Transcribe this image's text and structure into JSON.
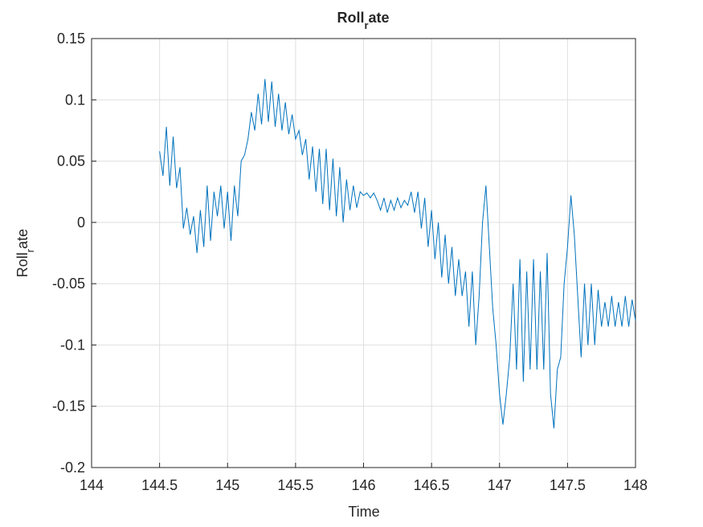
{
  "chart_data": {
    "type": "line",
    "title": [
      "Roll",
      "r",
      "ate"
    ],
    "xlabel": "Time",
    "ylabel": [
      "Roll",
      "r",
      "ate"
    ],
    "xlim": [
      144,
      148
    ],
    "xticks": [
      144,
      144.5,
      145,
      145.5,
      146,
      146.5,
      147,
      147.5,
      148
    ],
    "ylim": [
      -0.2,
      0.15
    ],
    "yticks": [
      -0.2,
      -0.15,
      -0.1,
      -0.05,
      0,
      0.05,
      0.1,
      0.15
    ],
    "grid": true,
    "x": [
      144.5,
      144.525,
      144.55,
      144.575,
      144.6,
      144.625,
      144.65,
      144.675,
      144.7,
      144.725,
      144.75,
      144.775,
      144.8,
      144.825,
      144.85,
      144.875,
      144.9,
      144.925,
      144.95,
      144.975,
      145,
      145.025,
      145.05,
      145.075,
      145.1,
      145.125,
      145.15,
      145.175,
      145.2,
      145.225,
      145.25,
      145.275,
      145.3,
      145.325,
      145.35,
      145.375,
      145.4,
      145.425,
      145.45,
      145.475,
      145.5,
      145.525,
      145.55,
      145.575,
      145.6,
      145.625,
      145.65,
      145.675,
      145.7,
      145.725,
      145.75,
      145.775,
      145.8,
      145.825,
      145.85,
      145.875,
      145.9,
      145.925,
      145.95,
      145.975,
      146,
      146.025,
      146.05,
      146.075,
      146.1,
      146.125,
      146.15,
      146.175,
      146.2,
      146.225,
      146.25,
      146.275,
      146.3,
      146.325,
      146.35,
      146.375,
      146.4,
      146.425,
      146.45,
      146.475,
      146.5,
      146.525,
      146.55,
      146.575,
      146.6,
      146.625,
      146.65,
      146.675,
      146.7,
      146.725,
      146.75,
      146.775,
      146.8,
      146.825,
      146.85,
      146.875,
      146.9,
      146.925,
      146.95,
      146.975,
      147,
      147.025,
      147.05,
      147.075,
      147.1,
      147.125,
      147.15,
      147.175,
      147.2,
      147.225,
      147.25,
      147.275,
      147.3,
      147.325,
      147.35,
      147.375,
      147.4,
      147.425,
      147.45,
      147.475,
      147.5,
      147.525,
      147.55,
      147.575,
      147.6,
      147.625,
      147.65,
      147.675,
      147.7,
      147.725,
      147.75,
      147.775,
      147.8,
      147.825,
      147.85,
      147.875,
      147.9,
      147.925,
      147.95,
      147.975,
      148
    ],
    "series": [
      {
        "color": "#0072bd",
        "values": [
          0.058,
          0.038,
          0.078,
          0.03,
          0.07,
          0.028,
          0.045,
          -0.005,
          0.012,
          -0.01,
          0.005,
          -0.025,
          0.01,
          -0.02,
          0.03,
          -0.015,
          0.025,
          0.005,
          0.03,
          -0.005,
          0.025,
          -0.015,
          0.03,
          0.005,
          0.05,
          0.055,
          0.068,
          0.09,
          0.075,
          0.105,
          0.08,
          0.117,
          0.082,
          0.115,
          0.078,
          0.105,
          0.075,
          0.098,
          0.072,
          0.088,
          0.068,
          0.075,
          0.055,
          0.068,
          0.035,
          0.062,
          0.025,
          0.06,
          0.015,
          0.06,
          0.01,
          0.052,
          0.005,
          0.045,
          0,
          0.035,
          0.01,
          0.03,
          0.012,
          0.025,
          0.022,
          0.024,
          0.02,
          0.024,
          0.018,
          0.01,
          0.02,
          0.008,
          0.018,
          0.01,
          0.02,
          0.012,
          0.018,
          0.014,
          0.025,
          0.008,
          0.025,
          -0.005,
          0.02,
          -0.02,
          0.01,
          -0.03,
          0,
          -0.045,
          -0.01,
          -0.05,
          -0.02,
          -0.06,
          -0.03,
          -0.06,
          -0.04,
          -0.085,
          -0.04,
          -0.1,
          -0.06,
          0,
          0.03,
          -0.02,
          -0.07,
          -0.1,
          -0.14,
          -0.165,
          -0.14,
          -0.11,
          -0.05,
          -0.12,
          -0.03,
          -0.13,
          -0.04,
          -0.12,
          -0.03,
          -0.12,
          -0.04,
          -0.12,
          -0.025,
          -0.14,
          -0.168,
          -0.12,
          -0.11,
          -0.05,
          -0.02,
          0.022,
          -0.01,
          -0.06,
          -0.11,
          -0.05,
          -0.1,
          -0.05,
          -0.1,
          -0.055,
          -0.085,
          -0.065,
          -0.085,
          -0.06,
          -0.085,
          -0.065,
          -0.085,
          -0.06,
          -0.085,
          -0.063,
          -0.08
        ]
      }
    ]
  }
}
